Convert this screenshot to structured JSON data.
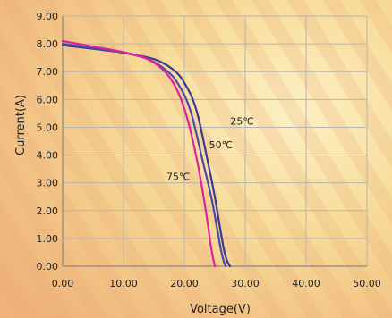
{
  "chart_data": {
    "type": "line",
    "xlabel": "Voltage(V)",
    "ylabel": "Current(A)",
    "xlim": [
      0,
      50
    ],
    "ylim": [
      0,
      9
    ],
    "x_ticks": [
      0,
      10,
      20,
      30,
      40,
      50
    ],
    "y_ticks": [
      0,
      1,
      2,
      3,
      4,
      5,
      6,
      7,
      8,
      9
    ],
    "x_tick_labels": [
      "0.00",
      "10.00",
      "20.00",
      "30.00",
      "40.00",
      "50.00"
    ],
    "y_tick_labels": [
      "0.00",
      "1.00",
      "2.00",
      "3.00",
      "4.00",
      "5.00",
      "6.00",
      "7.00",
      "8.00",
      "9.00"
    ],
    "grid": true,
    "series": [
      {
        "name": "25℃",
        "color": "#3a3a8e",
        "x": [
          0,
          5,
          10,
          15,
          18,
          20,
          22,
          24,
          25,
          26,
          26.5,
          27,
          27.5
        ],
        "y": [
          7.95,
          7.82,
          7.68,
          7.45,
          7.1,
          6.6,
          5.6,
          3.6,
          2.5,
          1.2,
          0.6,
          0.2,
          0
        ]
      },
      {
        "name": "50℃",
        "color": "#4a4aa8",
        "x": [
          0,
          5,
          10,
          14,
          17,
          19,
          21,
          23,
          24.5,
          25.5,
          26,
          26.5,
          26.8
        ],
        "y": [
          8.0,
          7.85,
          7.68,
          7.45,
          7.05,
          6.55,
          5.6,
          3.8,
          2.4,
          1.2,
          0.6,
          0.15,
          0
        ]
      },
      {
        "name": "75℃",
        "color": "#e0229a",
        "x": [
          0,
          5,
          10,
          14,
          17,
          19,
          20.5,
          22,
          23,
          23.8,
          24.3,
          24.7,
          25
        ],
        "y": [
          8.1,
          7.9,
          7.7,
          7.45,
          6.95,
          6.25,
          5.3,
          3.9,
          2.7,
          1.6,
          0.8,
          0.3,
          0
        ]
      }
    ]
  }
}
